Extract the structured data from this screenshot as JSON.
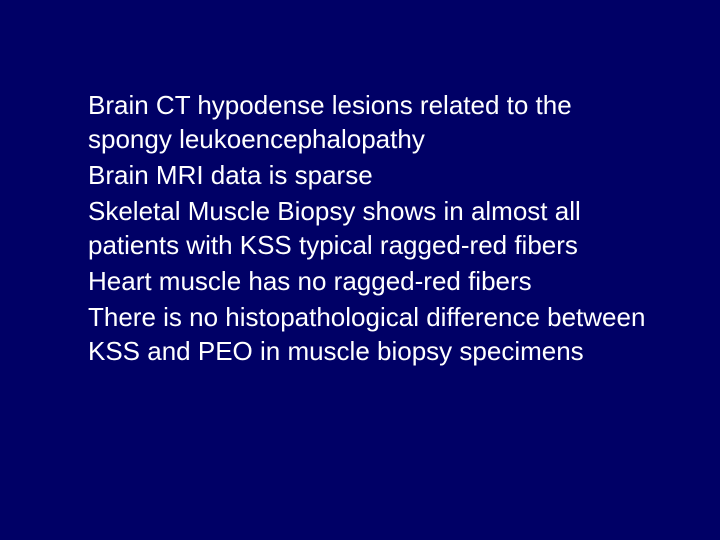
{
  "slide": {
    "background_color": "#000066",
    "text_color": "#ffffff",
    "font_family": "Arial",
    "font_size_pt": 20,
    "line_height": 34,
    "bullets": [
      {
        "text": "Brain CT hypodense lesions related to the spongy leukoencephalopathy"
      },
      {
        "text": "Brain MRI data is sparse"
      },
      {
        "text": "Skeletal Muscle Biopsy shows in almost all patients with KSS typical ragged-red fibers"
      },
      {
        "text": "Heart muscle has no ragged-red fibers"
      },
      {
        "text": "There is no histopathological difference between KSS and PEO in muscle biopsy specimens"
      }
    ]
  }
}
